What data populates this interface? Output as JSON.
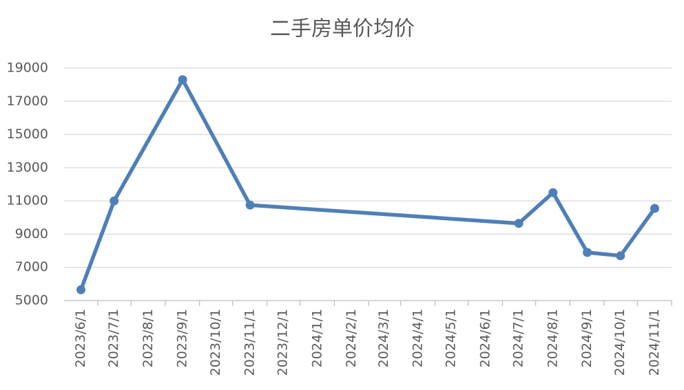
{
  "chart_data": {
    "type": "line",
    "title": "二手房单价均价",
    "x": [
      "2023/6/1",
      "2023/7/1",
      "2023/9/1",
      "2023/11/1",
      "2024/7/1",
      "2024/8/1",
      "2024/9/1",
      "2024/10/1",
      "2024/11/1"
    ],
    "series": [
      {
        "name": "二手房单价均价",
        "color": "#4f7fb8",
        "values": [
          5650,
          11000,
          18300,
          10750,
          9650,
          11500,
          7900,
          7700,
          10550
        ]
      }
    ],
    "xticks": [
      "2023/6/1",
      "2023/7/1",
      "2023/8/1",
      "2023/9/1",
      "2023/10/1",
      "2023/11/1",
      "2023/12/1",
      "2024/1/1",
      "2024/2/1",
      "2024/3/1",
      "2024/4/1",
      "2024/5/1",
      "2024/6/1",
      "2024/7/1",
      "2024/8/1",
      "2024/9/1",
      "2024/10/1",
      "2024/11/1"
    ],
    "ylim": [
      5000,
      19000
    ],
    "yticks": [
      5000,
      7000,
      9000,
      11000,
      13000,
      15000,
      17000,
      19000
    ],
    "grid": true
  }
}
